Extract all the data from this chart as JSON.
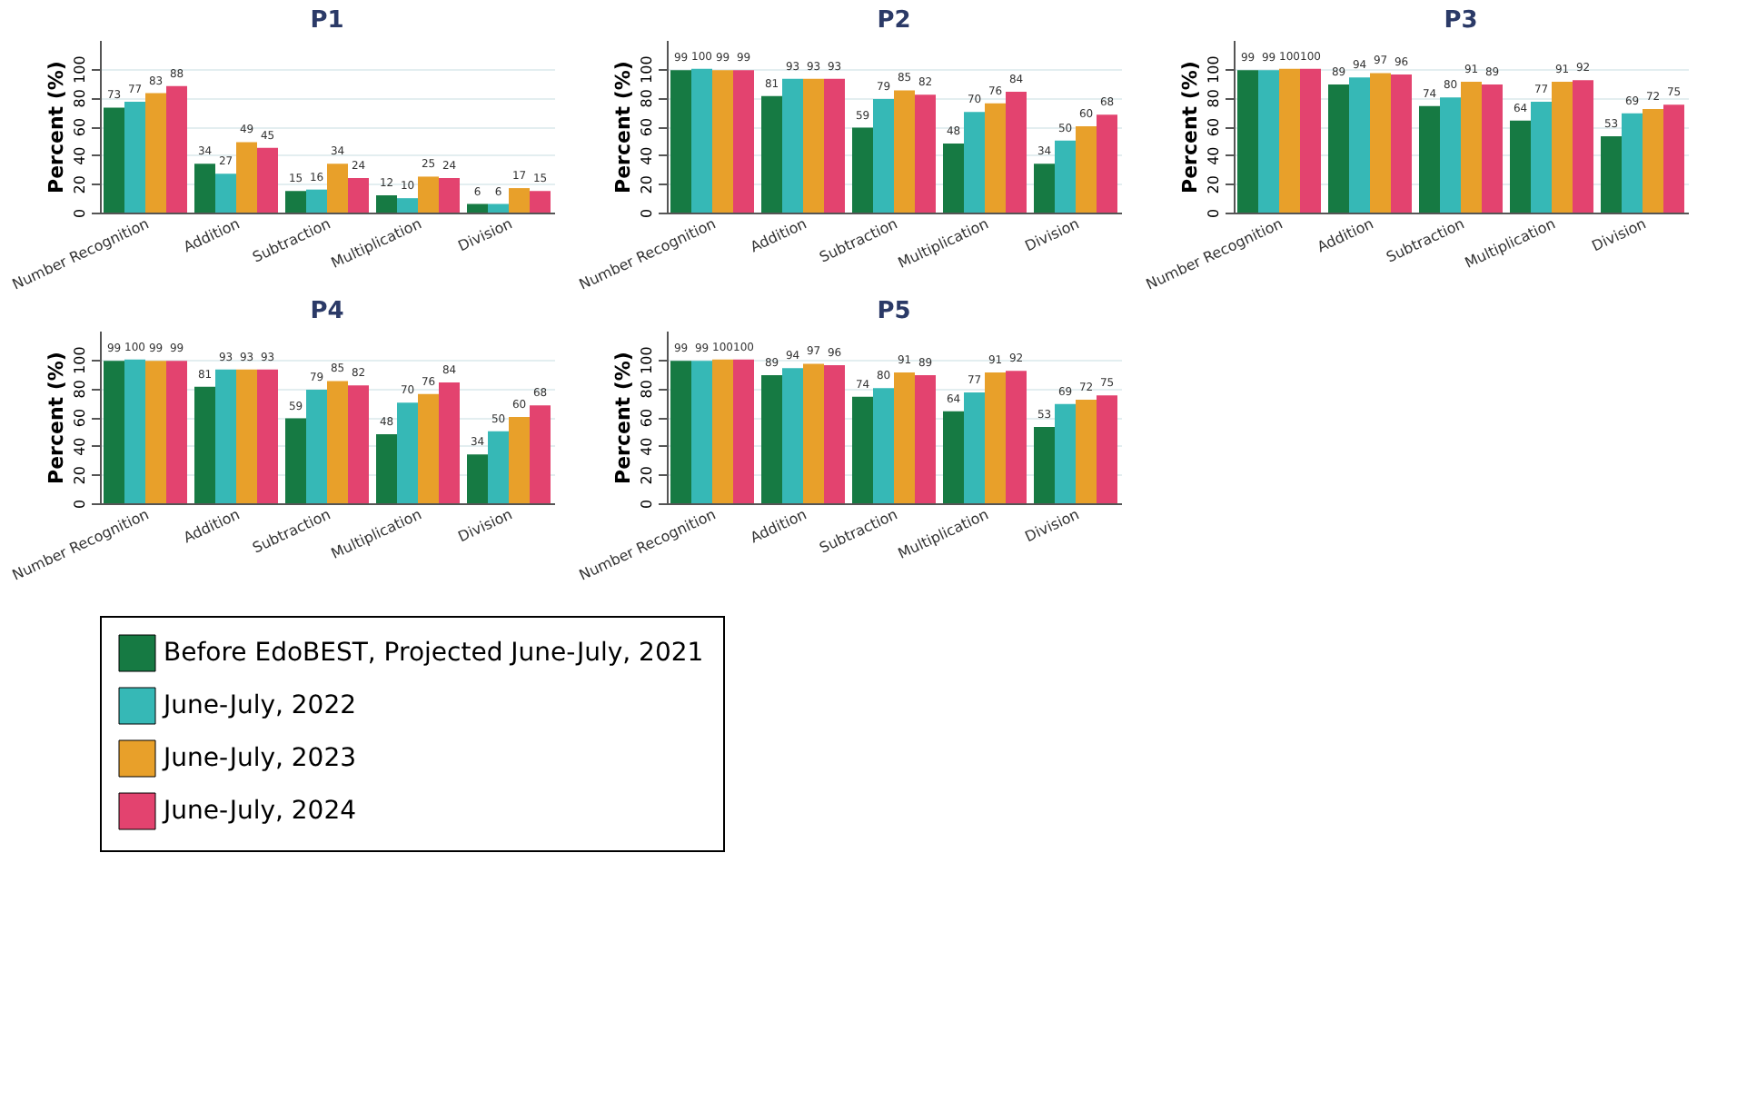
{
  "chart_data": [
    {
      "type": "bar",
      "title": "P1",
      "ylabel": "Percent (%)",
      "categories": [
        "Number Recognition",
        "Addition",
        "Subtraction",
        "Multiplication",
        "Division"
      ],
      "ylim": [
        0,
        120
      ],
      "yticks": [
        0,
        20,
        40,
        60,
        80,
        100
      ],
      "grid": "y",
      "legend": "bottom",
      "data_labels": true,
      "series": [
        {
          "name": "Before EdoBEST, Projected June-July, 2021",
          "color": "#167a43",
          "values": [
            73,
            34,
            15,
            12,
            6
          ]
        },
        {
          "name": "June-July, 2022",
          "color": "#36b8b6",
          "values": [
            77,
            27,
            16,
            10,
            6
          ]
        },
        {
          "name": "June-July, 2023",
          "color": "#e8a02a",
          "values": [
            83,
            49,
            34,
            25,
            17
          ]
        },
        {
          "name": "June-July, 2024",
          "color": "#e3436f",
          "values": [
            88,
            45,
            24,
            24,
            15
          ]
        }
      ]
    },
    {
      "type": "bar",
      "title": "P2",
      "ylabel": "Percent (%)",
      "categories": [
        "Number Recognition",
        "Addition",
        "Subtraction",
        "Multiplication",
        "Division"
      ],
      "ylim": [
        0,
        120
      ],
      "yticks": [
        0,
        20,
        40,
        60,
        80,
        100
      ],
      "grid": "y",
      "legend": "bottom",
      "data_labels": true,
      "series": [
        {
          "name": "Before EdoBEST, Projected June-July, 2021",
          "color": "#167a43",
          "values": [
            99,
            81,
            59,
            48,
            34
          ]
        },
        {
          "name": "June-July, 2022",
          "color": "#36b8b6",
          "values": [
            100,
            93,
            79,
            70,
            50
          ]
        },
        {
          "name": "June-July, 2023",
          "color": "#e8a02a",
          "values": [
            99,
            93,
            85,
            76,
            60
          ]
        },
        {
          "name": "June-July, 2024",
          "color": "#e3436f",
          "values": [
            99,
            93,
            82,
            84,
            68
          ]
        }
      ]
    },
    {
      "type": "bar",
      "title": "P3",
      "ylabel": "Percent (%)",
      "categories": [
        "Number Recognition",
        "Addition",
        "Subtraction",
        "Multiplication",
        "Division"
      ],
      "ylim": [
        0,
        120
      ],
      "yticks": [
        0,
        20,
        40,
        60,
        80,
        100
      ],
      "grid": "y",
      "legend": "bottom",
      "data_labels": true,
      "series": [
        {
          "name": "Before EdoBEST, Projected June-July, 2021",
          "color": "#167a43",
          "values": [
            99,
            89,
            74,
            64,
            53
          ]
        },
        {
          "name": "June-July, 2022",
          "color": "#36b8b6",
          "values": [
            99,
            94,
            80,
            77,
            69
          ]
        },
        {
          "name": "June-July, 2023",
          "color": "#e8a02a",
          "values": [
            100,
            97,
            91,
            91,
            72
          ]
        },
        {
          "name": "June-July, 2024",
          "color": "#e3436f",
          "values": [
            100,
            96,
            89,
            92,
            75
          ]
        }
      ]
    },
    {
      "type": "bar",
      "title": "P4",
      "ylabel": "Percent (%)",
      "categories": [
        "Number Recognition",
        "Addition",
        "Subtraction",
        "Multiplication",
        "Division"
      ],
      "ylim": [
        0,
        120
      ],
      "yticks": [
        0,
        20,
        40,
        60,
        80,
        100
      ],
      "grid": "y",
      "legend": "bottom",
      "data_labels": true,
      "series": [
        {
          "name": "Before EdoBEST, Projected June-July, 2021",
          "color": "#167a43",
          "values": [
            99,
            81,
            59,
            48,
            34
          ]
        },
        {
          "name": "June-July, 2022",
          "color": "#36b8b6",
          "values": [
            100,
            93,
            79,
            70,
            50
          ]
        },
        {
          "name": "June-July, 2023",
          "color": "#e8a02a",
          "values": [
            99,
            93,
            85,
            76,
            60
          ]
        },
        {
          "name": "June-July, 2024",
          "color": "#e3436f",
          "values": [
            99,
            93,
            82,
            84,
            68
          ]
        }
      ]
    },
    {
      "type": "bar",
      "title": "P5",
      "ylabel": "Percent (%)",
      "categories": [
        "Number Recognition",
        "Addition",
        "Subtraction",
        "Multiplication",
        "Division"
      ],
      "ylim": [
        0,
        120
      ],
      "yticks": [
        0,
        20,
        40,
        60,
        80,
        100
      ],
      "grid": "y",
      "legend": "bottom",
      "data_labels": true,
      "series": [
        {
          "name": "Before EdoBEST, Projected June-July, 2021",
          "color": "#167a43",
          "values": [
            99,
            89,
            74,
            64,
            53
          ]
        },
        {
          "name": "June-July, 2022",
          "color": "#36b8b6",
          "values": [
            99,
            94,
            80,
            77,
            69
          ]
        },
        {
          "name": "June-July, 2023",
          "color": "#e8a02a",
          "values": [
            100,
            97,
            91,
            91,
            72
          ]
        },
        {
          "name": "June-July, 2024",
          "color": "#e3436f",
          "values": [
            100,
            96,
            89,
            92,
            75
          ]
        }
      ]
    }
  ]
}
